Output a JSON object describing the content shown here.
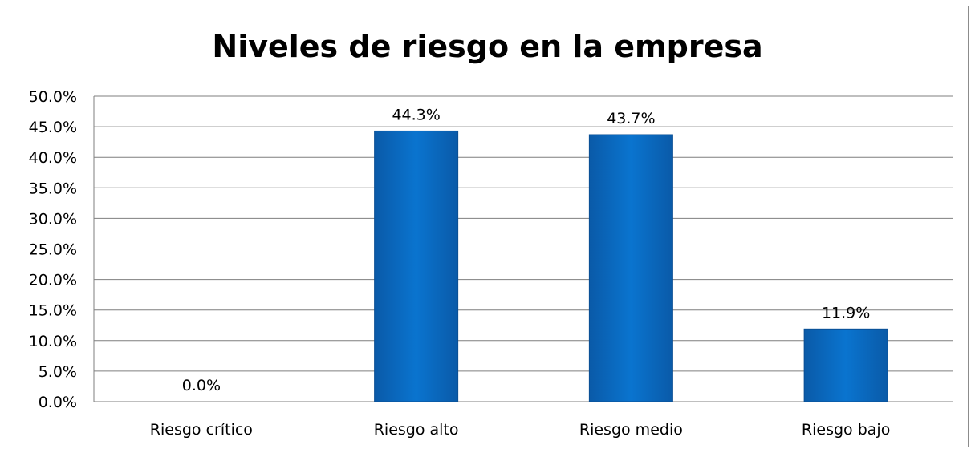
{
  "chart_data": {
    "type": "bar",
    "title": "Niveles de riesgo en la empresa",
    "xlabel": "",
    "ylabel": "",
    "categories": [
      "Riesgo crítico",
      "Riesgo alto",
      "Riesgo medio",
      "Riesgo bajo"
    ],
    "values": [
      0.0,
      44.3,
      43.7,
      11.9
    ],
    "data_labels": [
      "0.0%",
      "44.3%",
      "43.7%",
      "11.9%"
    ],
    "ylim": [
      0,
      50
    ],
    "y_ticks": [
      "0.0%",
      "5.0%",
      "10.0%",
      "15.0%",
      "20.0%",
      "25.0%",
      "30.0%",
      "35.0%",
      "40.0%",
      "45.0%",
      "50.0%"
    ],
    "y_tick_values": [
      0,
      5,
      10,
      15,
      20,
      25,
      30,
      35,
      40,
      45,
      50
    ],
    "grid": true,
    "legend": "none",
    "bar_color": "#0a6fc4",
    "grid_color": "#7f7f7f"
  }
}
